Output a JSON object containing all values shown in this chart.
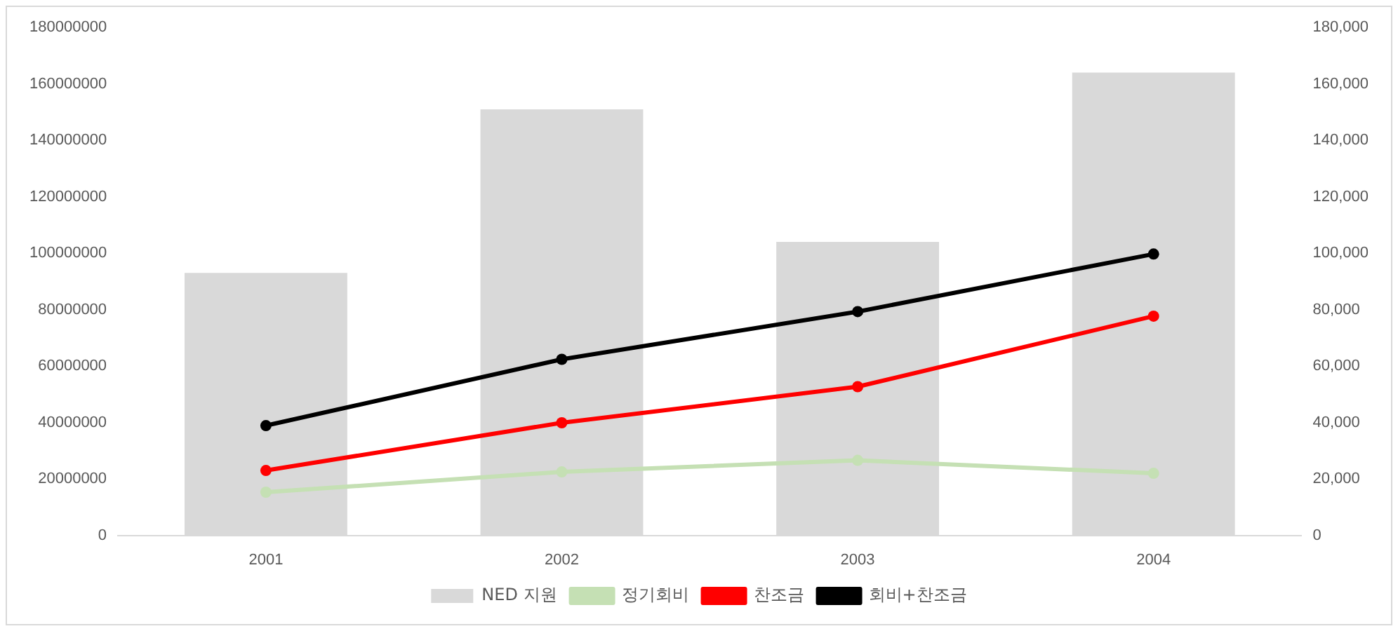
{
  "chart_data": {
    "type": "bar",
    "categories": [
      "2001",
      "2002",
      "2003",
      "2004"
    ],
    "series": [
      {
        "name": "NED 지원",
        "color": "#d9d9d9",
        "values": [
          93000000,
          151000000,
          104000000,
          164000000
        ]
      },
      {
        "name": "정기회비",
        "type": "line",
        "axis": "y2",
        "color": "#c5e0b4",
        "values": [
          15300,
          22500,
          26600,
          22000
        ]
      },
      {
        "name": "찬조금",
        "type": "line",
        "axis": "y2",
        "color": "#ff0000",
        "values": [
          23000,
          39900,
          52700,
          77700
        ]
      },
      {
        "name": "회비+찬조금",
        "type": "line",
        "axis": "y2",
        "color": "#000000",
        "values": [
          38900,
          62400,
          79300,
          99700
        ]
      }
    ],
    "ylim": [
      0,
      180000000
    ],
    "yticks": [
      0,
      20000000,
      40000000,
      60000000,
      80000000,
      100000000,
      120000000,
      140000000,
      160000000,
      180000000
    ],
    "y2lim": [
      0,
      180000
    ],
    "y2ticks": [
      0,
      {
        "value": 20000,
        "label": "20,000"
      },
      {
        "value": 40000,
        "label": "40,000"
      },
      {
        "value": 60000,
        "label": "60,000"
      },
      {
        "value": 80000,
        "label": "80,000"
      },
      {
        "value": 100000,
        "label": "100,000"
      },
      {
        "value": 120000,
        "label": "120,000"
      },
      {
        "value": 140000,
        "label": "140,000"
      },
      {
        "value": 160000,
        "label": "160,000"
      },
      {
        "value": 180000,
        "label": "180,000"
      }
    ],
    "legend": "bottom",
    "marker": "circle",
    "grid": false
  }
}
